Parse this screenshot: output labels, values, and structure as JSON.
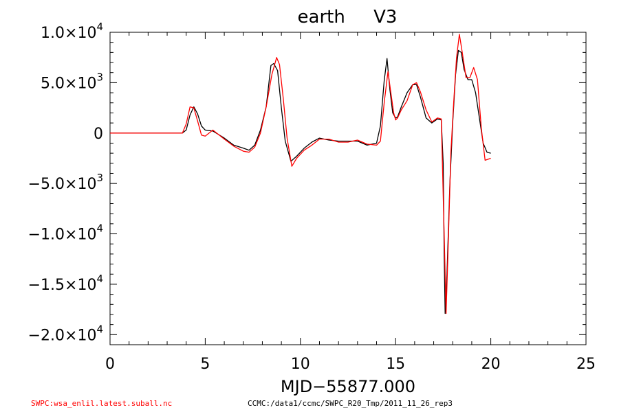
{
  "chart_data": {
    "type": "line",
    "title": "earth     V3",
    "xlabel": "MJD−55877.000",
    "ylabel": "",
    "xlim": [
      0,
      25
    ],
    "ylim": [
      -21000,
      10000
    ],
    "x_ticks": [
      {
        "value": 0,
        "label": "0"
      },
      {
        "value": 5,
        "label": "5"
      },
      {
        "value": 10,
        "label": "10"
      },
      {
        "value": 15,
        "label": "15"
      },
      {
        "value": 20,
        "label": "20"
      },
      {
        "value": 25,
        "label": "25"
      }
    ],
    "y_ticks": [
      {
        "value": 10000,
        "mant": "1.0×10",
        "exp": "4"
      },
      {
        "value": 5000,
        "mant": "5.0×10",
        "exp": "3"
      },
      {
        "value": 0,
        "mant": "0",
        "exp": ""
      },
      {
        "value": -5000,
        "mant": "−5.0×10",
        "exp": "3"
      },
      {
        "value": -10000,
        "mant": "−1.0×10",
        "exp": "4"
      },
      {
        "value": -15000,
        "mant": "−1.5×10",
        "exp": "4"
      },
      {
        "value": -20000,
        "mant": "−2.0×10",
        "exp": "4"
      }
    ],
    "grid": false,
    "legend": "none",
    "series": [
      {
        "color": "#000000",
        "x": [
          0,
          1,
          2,
          3,
          3.5,
          3.8,
          4.0,
          4.2,
          4.4,
          4.6,
          4.8,
          5.0,
          5.4,
          6.0,
          6.5,
          7.0,
          7.3,
          7.6,
          7.9,
          8.2,
          8.45,
          8.6,
          8.8,
          9.0,
          9.2,
          9.5,
          9.8,
          10.2,
          10.6,
          11.0,
          11.5,
          12.0,
          12.5,
          13.0,
          13.5,
          14.0,
          14.2,
          14.4,
          14.55,
          14.7,
          14.85,
          15.0,
          15.1,
          15.3,
          15.6,
          15.9,
          16.1,
          16.3,
          16.6,
          16.9,
          17.2,
          17.4,
          17.5,
          17.55,
          17.6,
          17.7,
          17.85,
          18.0,
          18.15,
          18.3,
          18.45,
          18.6,
          18.8,
          19.0,
          19.2,
          19.4,
          19.6,
          19.8,
          20.0
        ],
        "y": [
          0,
          0,
          0,
          0,
          0,
          0,
          300,
          1800,
          2600,
          1900,
          700,
          300,
          200,
          -500,
          -1200,
          -1500,
          -1700,
          -1200,
          300,
          2600,
          6700,
          6900,
          6200,
          2500,
          -800,
          -2800,
          -2300,
          -1500,
          -900,
          -500,
          -700,
          -800,
          -800,
          -800,
          -1200,
          -1000,
          700,
          5200,
          7400,
          4300,
          2000,
          1500,
          1600,
          2600,
          4000,
          4800,
          4800,
          3600,
          1500,
          1000,
          1400,
          1300,
          -3000,
          -12000,
          -17900,
          -14000,
          -5000,
          1000,
          5800,
          8200,
          8000,
          6300,
          5300,
          5300,
          4000,
          1500,
          -1000,
          -1900,
          -2000
        ]
      },
      {
        "color": "#ff0000",
        "x": [
          0,
          1,
          2,
          3,
          3.5,
          3.8,
          4.0,
          4.2,
          4.4,
          4.6,
          4.8,
          5.0,
          5.4,
          6.0,
          6.5,
          7.0,
          7.3,
          7.6,
          7.9,
          8.2,
          8.5,
          8.75,
          8.9,
          9.1,
          9.3,
          9.55,
          9.8,
          10.2,
          10.6,
          11.0,
          11.5,
          12.0,
          12.5,
          13.0,
          13.5,
          14.0,
          14.2,
          14.4,
          14.6,
          14.75,
          14.9,
          15.0,
          15.1,
          15.3,
          15.6,
          15.9,
          16.1,
          16.3,
          16.6,
          16.9,
          17.2,
          17.4,
          17.55,
          17.65,
          17.75,
          17.9,
          18.05,
          18.2,
          18.35,
          18.5,
          18.7,
          18.9,
          19.1,
          19.3,
          19.5,
          19.7,
          20.0
        ],
        "y": [
          0,
          0,
          0,
          0,
          0,
          0,
          900,
          2600,
          2500,
          1200,
          -200,
          -300,
          300,
          -600,
          -1300,
          -1800,
          -1900,
          -1400,
          0,
          2600,
          5800,
          7500,
          6800,
          3400,
          -500,
          -3300,
          -2500,
          -1700,
          -1200,
          -600,
          -600,
          -900,
          -900,
          -700,
          -1100,
          -1200,
          -800,
          3000,
          6100,
          4000,
          2000,
          1300,
          1500,
          2300,
          3200,
          4800,
          5000,
          4100,
          2300,
          1100,
          1500,
          1400,
          -10000,
          -17900,
          -12000,
          -2000,
          3000,
          7500,
          9800,
          8000,
          5500,
          5500,
          6500,
          5300,
          500,
          -2700,
          -2500
        ]
      }
    ]
  },
  "footer": {
    "source_file": "SWPC:wsa_enlil.latest.suball.nc",
    "run_path": "CCMC:/data1/ccmc/SWPC_R20_Tmp/2011_11_26_rep3"
  },
  "colors": {
    "source_file": "#ff0000",
    "run_path": "#000000"
  }
}
